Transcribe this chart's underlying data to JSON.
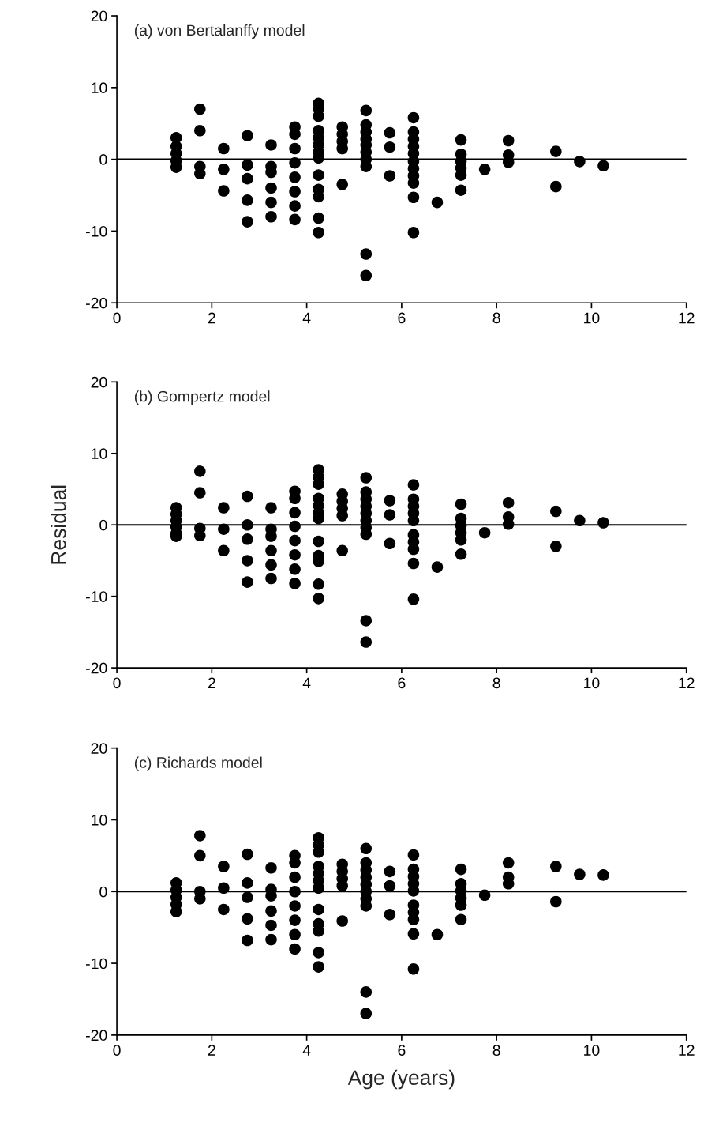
{
  "chart_data": [
    {
      "type": "scatter",
      "title": "(a) von Bertalanffy model",
      "marker": "circle",
      "grid": false,
      "legend": false,
      "tick_labels": true,
      "series": [
        {
          "color": "#000000",
          "x": [
            1.25,
            1.25,
            1.25,
            1.25,
            1.25,
            1.75,
            1.75,
            1.75,
            1.75,
            2.25,
            2.25,
            2.25,
            2.75,
            2.75,
            2.75,
            2.75,
            2.75,
            3.25,
            3.25,
            3.25,
            3.25,
            3.25,
            3.25,
            3.75,
            3.75,
            3.75,
            3.75,
            3.75,
            3.75,
            3.75,
            3.75,
            4.25,
            4.25,
            4.25,
            4.25,
            4.25,
            4.25,
            4.25,
            4.25,
            4.25,
            4.25,
            4.25,
            4.25,
            4.25,
            4.75,
            4.75,
            4.75,
            4.75,
            4.75,
            5.25,
            5.25,
            5.25,
            5.25,
            5.25,
            5.25,
            5.25,
            5.25,
            5.25,
            5.25,
            5.75,
            5.75,
            5.75,
            6.25,
            6.25,
            6.25,
            6.25,
            6.25,
            6.25,
            6.25,
            6.25,
            6.25,
            6.25,
            6.25,
            6.75,
            7.25,
            7.25,
            7.25,
            7.25,
            7.25,
            7.25,
            7.75,
            8.25,
            8.25,
            8.25,
            9.25,
            9.25,
            9.75,
            10.25
          ],
          "values": [
            3,
            1.8,
            0.8,
            -0.2,
            -1.1,
            7,
            4,
            -1,
            -2,
            1.5,
            -1.4,
            -4.4,
            3.3,
            -0.8,
            -2.7,
            -5.7,
            -8.7,
            2,
            -1,
            -1.8,
            -4,
            -6,
            -8,
            4.5,
            3.5,
            1.5,
            -0.5,
            -2.5,
            -4.5,
            -6.5,
            -8.4,
            7.8,
            7,
            6,
            4,
            3,
            2,
            1,
            0.2,
            -2.2,
            -4.2,
            -5.2,
            -8.2,
            -10.2,
            4.5,
            3.5,
            2.5,
            1.5,
            -3.5,
            6.8,
            4.8,
            3.8,
            2.8,
            2,
            1,
            0,
            -1,
            -13.2,
            -16.2,
            3.7,
            1.7,
            -2.3,
            5.8,
            3.8,
            2.8,
            1.8,
            0.8,
            -0.3,
            -1.3,
            -2.3,
            -3.3,
            -5.3,
            -10.2,
            -6,
            2.7,
            0.7,
            -0.3,
            -1.2,
            -2.2,
            -4.3,
            -1.4,
            2.6,
            0.6,
            -0.4,
            1.1,
            -3.8,
            -0.3,
            -0.9
          ]
        }
      ],
      "xlim": [
        0,
        12
      ],
      "xticks": [
        0,
        2,
        4,
        6,
        8,
        10,
        12
      ],
      "ylim": [
        -20,
        20
      ],
      "yticks": [
        -20,
        -10,
        0,
        10,
        20
      ],
      "ref_lines": [
        {
          "axis": "y",
          "value": 0,
          "color": "#000000"
        }
      ]
    },
    {
      "type": "scatter",
      "title": "(b) Gompertz model",
      "ylabel": "Residual",
      "marker": "circle",
      "grid": false,
      "legend": false,
      "series": [
        {
          "color": "#000000",
          "x": [
            1.25,
            1.25,
            1.25,
            1.25,
            1.25,
            1.25,
            1.75,
            1.75,
            1.75,
            1.75,
            2.25,
            2.25,
            2.25,
            2.75,
            2.75,
            2.75,
            2.75,
            2.75,
            3.25,
            3.25,
            3.25,
            3.25,
            3.25,
            3.25,
            3.75,
            3.75,
            3.75,
            3.75,
            3.75,
            3.75,
            3.75,
            3.75,
            4.25,
            4.25,
            4.25,
            4.25,
            4.25,
            4.25,
            4.25,
            4.25,
            4.25,
            4.25,
            4.25,
            4.25,
            4.75,
            4.75,
            4.75,
            4.75,
            4.75,
            5.25,
            5.25,
            5.25,
            5.25,
            5.25,
            5.25,
            5.25,
            5.25,
            5.25,
            5.25,
            5.75,
            5.75,
            5.75,
            6.25,
            6.25,
            6.25,
            6.25,
            6.25,
            6.25,
            6.25,
            6.25,
            6.25,
            6.25,
            6.75,
            7.25,
            7.25,
            7.25,
            7.25,
            7.25,
            7.25,
            7.75,
            8.25,
            8.25,
            8.25,
            9.25,
            9.25,
            9.75,
            10.25
          ],
          "values": [
            2.4,
            1.5,
            0.6,
            -0.3,
            -1.2,
            -1.6,
            7.5,
            4.5,
            -0.5,
            -1.5,
            2.4,
            -0.6,
            -3.6,
            4,
            0,
            -2,
            -5,
            -8,
            2.4,
            -0.6,
            -1.6,
            -3.6,
            -5.6,
            -7.5,
            4.7,
            3.7,
            1.7,
            -0.2,
            -2.2,
            -4.2,
            -6.2,
            -8.2,
            7.7,
            6.7,
            5.7,
            3.7,
            2.7,
            1.7,
            0.9,
            -2.3,
            -4.3,
            -5.1,
            -8.3,
            -10.3,
            4.3,
            3.3,
            2.3,
            1.3,
            -3.6,
            6.6,
            4.6,
            3.6,
            2.6,
            1.6,
            0.6,
            -0.4,
            -1.3,
            -13.4,
            -16.4,
            3.4,
            1.4,
            -2.6,
            5.6,
            3.6,
            2.6,
            1.6,
            0.6,
            -1.4,
            -2.4,
            -3.4,
            -5.4,
            -10.4,
            -5.9,
            2.9,
            0.9,
            -0.1,
            -1.1,
            -2.1,
            -4.1,
            -1.1,
            3.1,
            1.1,
            0.1,
            1.9,
            -3,
            0.6,
            0.3
          ]
        }
      ],
      "xlim": [
        0,
        12
      ],
      "xticks": [
        0,
        2,
        4,
        6,
        8,
        10,
        12
      ],
      "ylim": [
        -20,
        20
      ],
      "yticks": [
        -20,
        -10,
        0,
        10,
        20
      ],
      "ref_lines": [
        {
          "axis": "y",
          "value": 0,
          "color": "#000000"
        }
      ]
    },
    {
      "type": "scatter",
      "title": "(c) Richards model",
      "xlabel": "Age (years)",
      "marker": "circle",
      "grid": false,
      "legend": false,
      "series": [
        {
          "color": "#000000",
          "x": [
            1.25,
            1.25,
            1.25,
            1.25,
            1.25,
            1.75,
            1.75,
            1.75,
            1.75,
            2.25,
            2.25,
            2.25,
            2.75,
            2.75,
            2.75,
            2.75,
            2.75,
            3.25,
            3.25,
            3.25,
            3.25,
            3.25,
            3.25,
            3.75,
            3.75,
            3.75,
            3.75,
            3.75,
            3.75,
            3.75,
            3.75,
            4.25,
            4.25,
            4.25,
            4.25,
            4.25,
            4.25,
            4.25,
            4.25,
            4.25,
            4.25,
            4.25,
            4.25,
            4.75,
            4.75,
            4.75,
            4.75,
            4.75,
            5.25,
            5.25,
            5.25,
            5.25,
            5.25,
            5.25,
            5.25,
            5.25,
            5.25,
            5.25,
            5.75,
            5.75,
            5.75,
            6.25,
            6.25,
            6.25,
            6.25,
            6.25,
            6.25,
            6.25,
            6.25,
            6.25,
            6.25,
            6.75,
            7.25,
            7.25,
            7.25,
            7.25,
            7.25,
            7.25,
            7.75,
            8.25,
            8.25,
            8.25,
            9.25,
            9.25,
            9.75,
            10.25
          ],
          "values": [
            1.2,
            0.2,
            -0.8,
            -1.8,
            -2.8,
            7.8,
            5,
            0,
            -1,
            3.5,
            0.5,
            -2.5,
            5.2,
            1.2,
            -0.8,
            -3.8,
            -6.8,
            3.3,
            0.3,
            -0.6,
            -2.7,
            -4.7,
            -6.7,
            5,
            4,
            2,
            0,
            -2,
            -4,
            -6,
            -8,
            7.5,
            6.5,
            5.5,
            3.5,
            2.5,
            1.5,
            0.5,
            -2.5,
            -4.5,
            -5.5,
            -8.5,
            -10.5,
            3.8,
            2.8,
            1.8,
            0.8,
            -4.1,
            6,
            4,
            3,
            2,
            1,
            0,
            -1,
            -2,
            -14,
            -17,
            2.8,
            0.8,
            -3.2,
            5.1,
            3.1,
            2.1,
            1.1,
            0.1,
            -1.9,
            -2.9,
            -3.9,
            -5.9,
            -10.8,
            -6,
            3.1,
            1.1,
            0.1,
            -0.9,
            -1.9,
            -3.9,
            -0.5,
            4,
            2,
            1.1,
            3.5,
            -1.4,
            2.4,
            2.3
          ]
        }
      ],
      "xlim": [
        0,
        12
      ],
      "xticks": [
        0,
        2,
        4,
        6,
        8,
        10,
        12
      ],
      "ylim": [
        -20,
        20
      ],
      "yticks": [
        -20,
        -10,
        0,
        10,
        20
      ],
      "ref_lines": [
        {
          "axis": "y",
          "value": 0,
          "color": "#000000"
        }
      ]
    }
  ]
}
